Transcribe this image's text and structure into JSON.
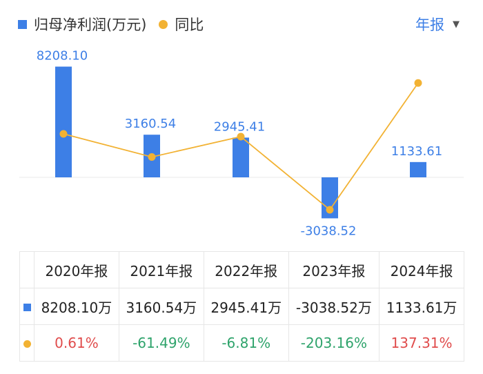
{
  "legend": {
    "bar_label": "归母净利润(万元)",
    "line_label": "同比"
  },
  "period_selector": {
    "label": "年报"
  },
  "colors": {
    "bar": "#3d7fe6",
    "line": "#f2b233",
    "positive": "#e04c4c",
    "negative": "#2ea36b",
    "label": "#3d7fe6"
  },
  "chart_data": {
    "type": "bar",
    "categories": [
      "2020年报",
      "2021年报",
      "2022年报",
      "2023年报",
      "2024年报"
    ],
    "series": [
      {
        "name": "归母净利润(万元)",
        "type": "bar",
        "values": [
          8208.1,
          3160.54,
          2945.41,
          -3038.52,
          1133.61
        ],
        "labels": [
          "8208.10",
          "3160.54",
          "2945.41",
          "-3038.52",
          "1133.61"
        ]
      },
      {
        "name": "同比",
        "type": "line",
        "values": [
          0.61,
          -61.49,
          -6.81,
          -203.16,
          137.31
        ]
      }
    ]
  },
  "table": {
    "headers": [
      "2020年报",
      "2021年报",
      "2022年报",
      "2023年报",
      "2024年报"
    ],
    "profit_row": [
      "8208.10万",
      "3160.54万",
      "2945.41万",
      "-3038.52万",
      "1133.61万"
    ],
    "yoy_row": [
      "0.61%",
      "-61.49%",
      "-6.81%",
      "-203.16%",
      "137.31%"
    ]
  }
}
